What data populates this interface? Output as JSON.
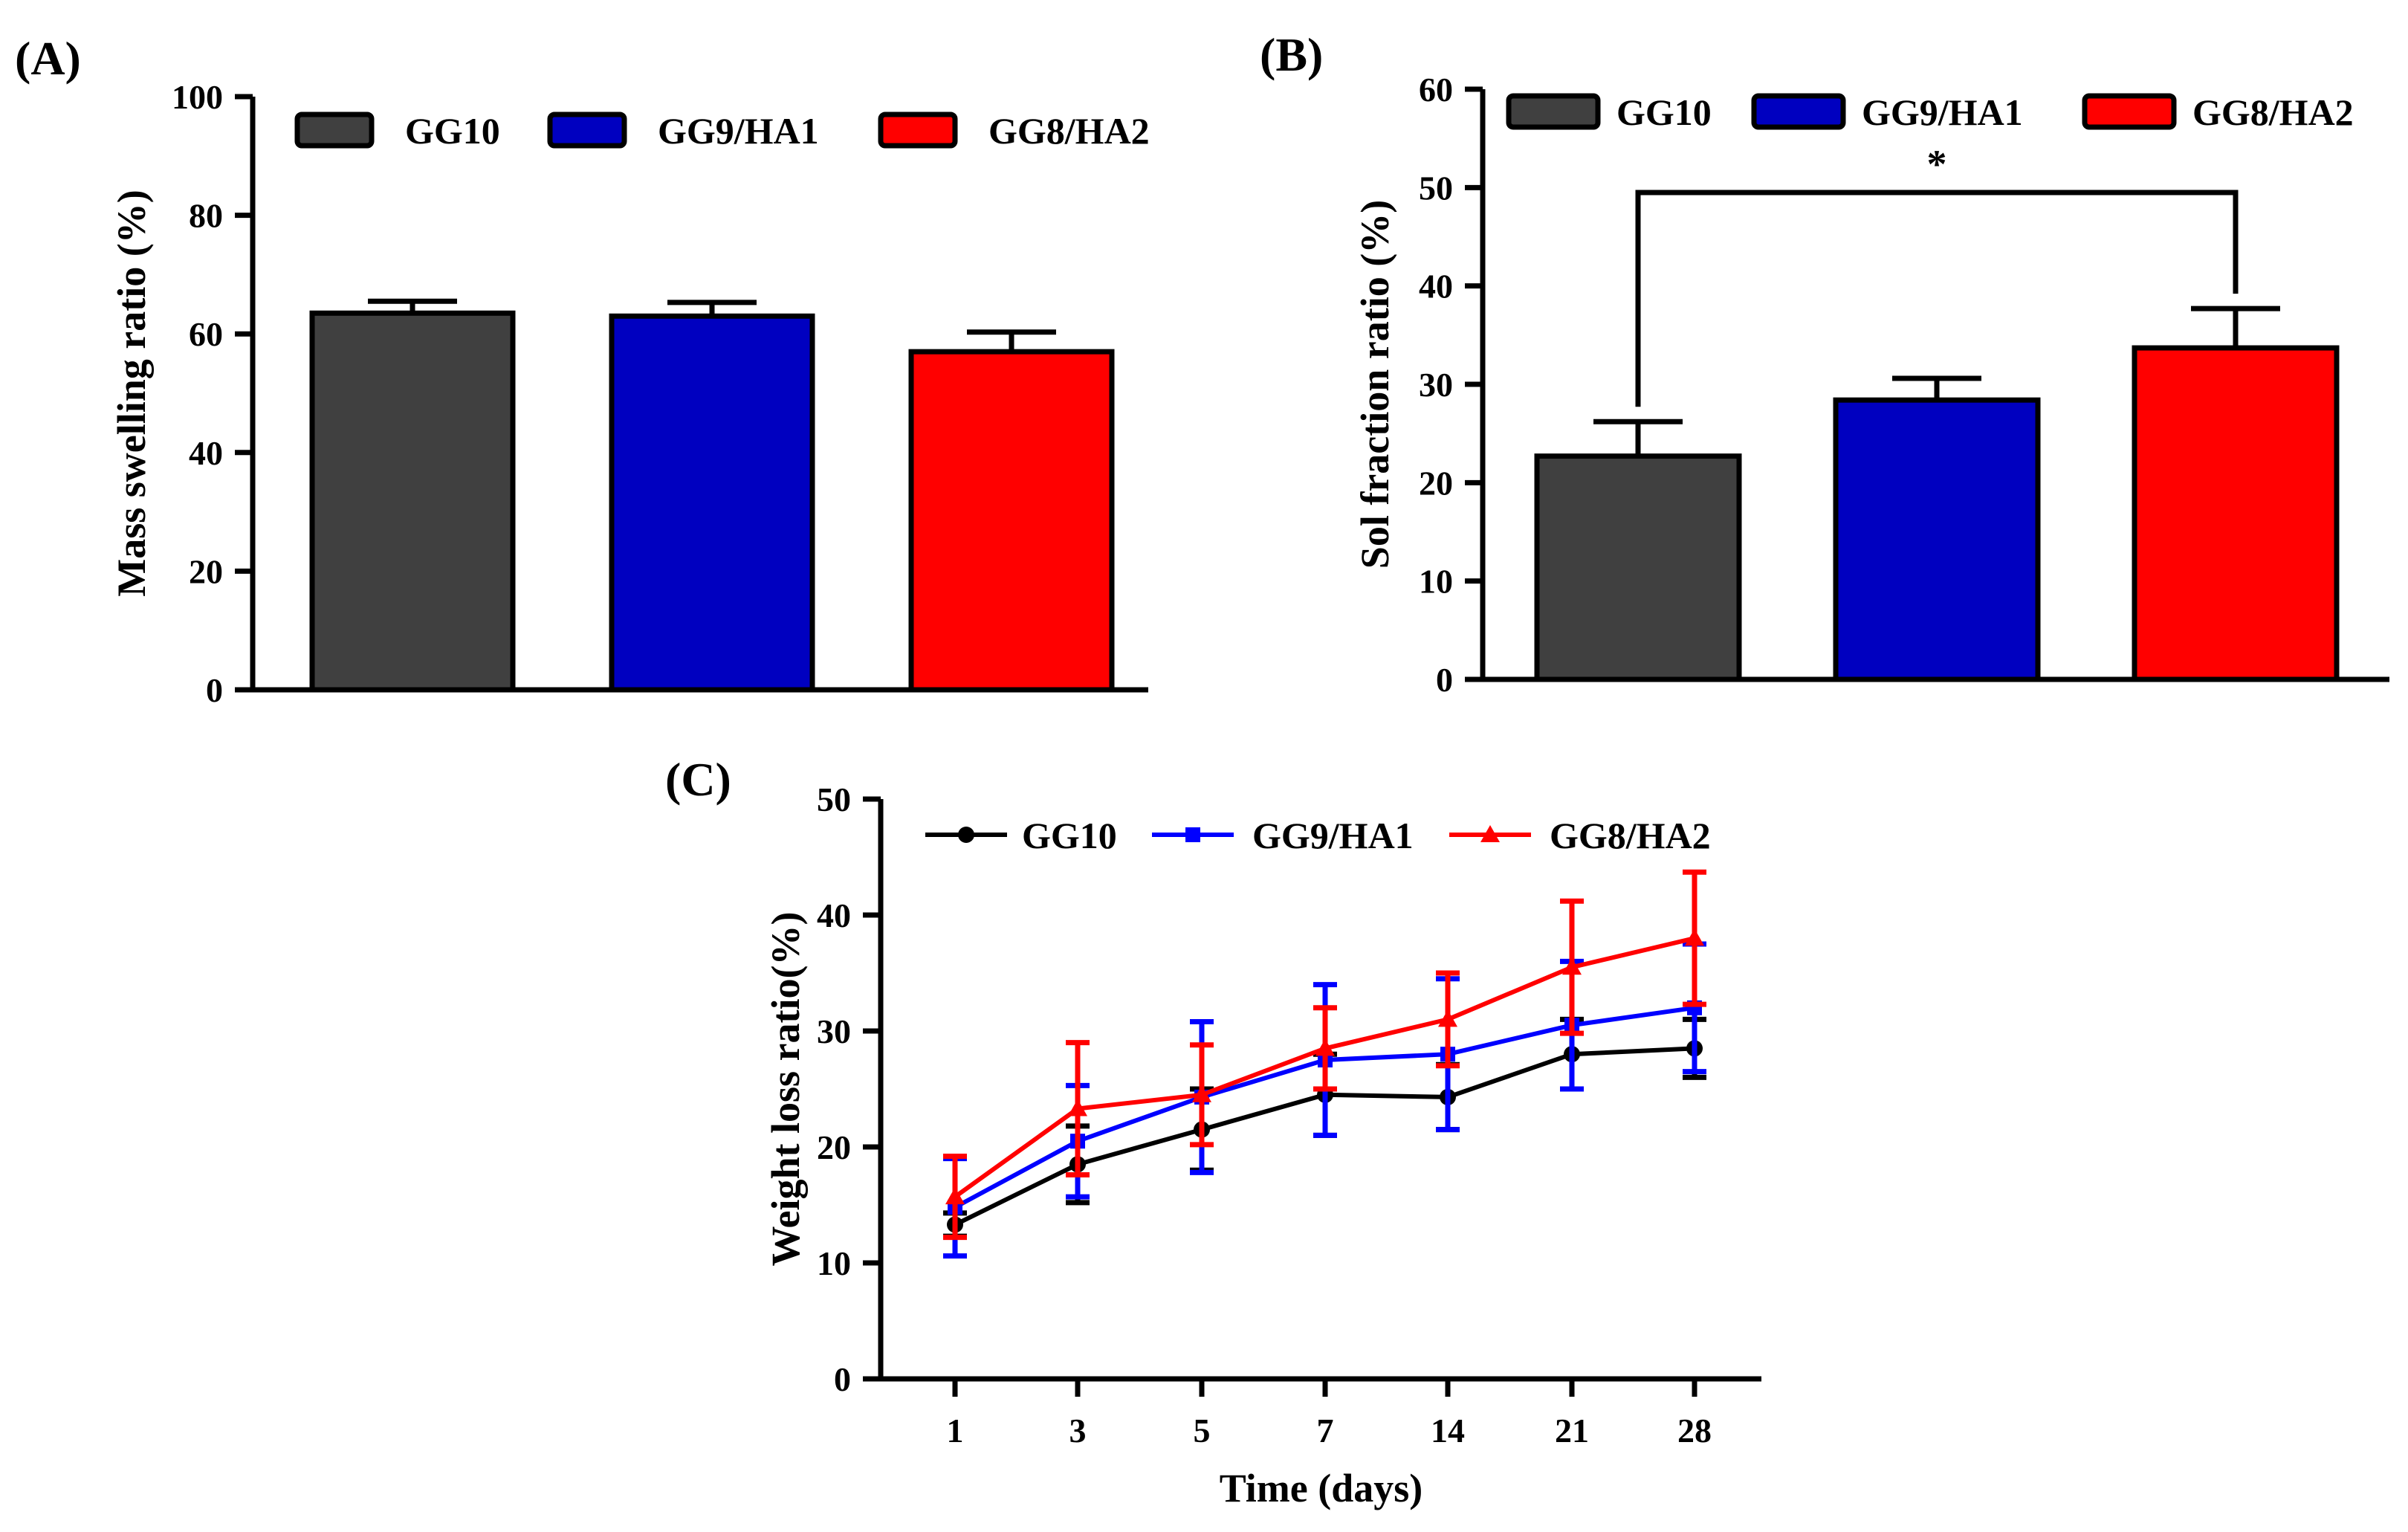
{
  "colors": {
    "GG10": "#404040",
    "GG9/HA1": "#0000c0",
    "GG8/HA2": "#ff0000",
    "GG10_line": "#000000",
    "GG9/HA1_line": "#0000ff",
    "GG8/HA2_line": "#ff0000"
  },
  "chart_data": [
    {
      "id": "A",
      "panel_label": "(A)",
      "type": "bar",
      "categories": [
        "GG10",
        "GG9/HA1",
        "GG8/HA2"
      ],
      "values": [
        63.5,
        63.0,
        57.0
      ],
      "errors": [
        2.0,
        2.3,
        3.3
      ],
      "legend": [
        "GG10",
        "GG9/HA1",
        "GG8/HA2"
      ],
      "xlabel": "",
      "ylabel": "Mass swelling ratio (%)",
      "ylim": [
        0,
        100
      ],
      "yticks": [
        "0",
        "20",
        "40",
        "60",
        "80",
        "100"
      ],
      "legend_position": "top"
    },
    {
      "id": "B",
      "panel_label": "(B)",
      "type": "bar",
      "categories": [
        "GG10",
        "GG9/HA1",
        "GG8/HA2"
      ],
      "values": [
        22.7,
        28.4,
        33.7
      ],
      "errors": [
        3.5,
        2.2,
        4.0
      ],
      "legend": [
        "GG10",
        "GG9/HA1",
        "GG8/HA2"
      ],
      "xlabel": "",
      "ylabel": "Sol fraction ratio (%)",
      "ylim": [
        0,
        60
      ],
      "yticks": [
        "0",
        "10",
        "20",
        "30",
        "40",
        "50",
        "60"
      ],
      "legend_position": "top",
      "annotation": {
        "text": "*",
        "between": [
          "GG10",
          "GG8/HA2"
        ],
        "y": 49.5
      }
    },
    {
      "id": "C",
      "panel_label": "(C)",
      "type": "line",
      "x": [
        "1",
        "3",
        "5",
        "7",
        "14",
        "21",
        "28"
      ],
      "series": [
        {
          "name": "GG10",
          "marker": "circle",
          "values": [
            13.3,
            18.5,
            21.5,
            24.5,
            24.3,
            28.0,
            28.5
          ],
          "errors": [
            1.0,
            3.3,
            3.5,
            3.5,
            2.8,
            3.0,
            2.5
          ]
        },
        {
          "name": "GG9/HA1",
          "marker": "square",
          "values": [
            14.8,
            20.5,
            24.3,
            27.5,
            28.0,
            30.5,
            32.0
          ],
          "errors": [
            4.2,
            4.8,
            6.5,
            6.5,
            6.5,
            5.5,
            5.5
          ]
        },
        {
          "name": "GG8/HA2",
          "marker": "triangle",
          "values": [
            15.7,
            23.3,
            24.5,
            28.5,
            31.0,
            35.5,
            38.0
          ],
          "errors": [
            3.5,
            5.7,
            4.3,
            3.5,
            4.0,
            5.7,
            5.7
          ]
        }
      ],
      "xlabel": "Time (days)",
      "ylabel": "Weight loss ratio(%)",
      "ylim": [
        0,
        50
      ],
      "yticks": [
        "0",
        "10",
        "20",
        "30",
        "40",
        "50"
      ],
      "legend_position": "top-left"
    }
  ]
}
